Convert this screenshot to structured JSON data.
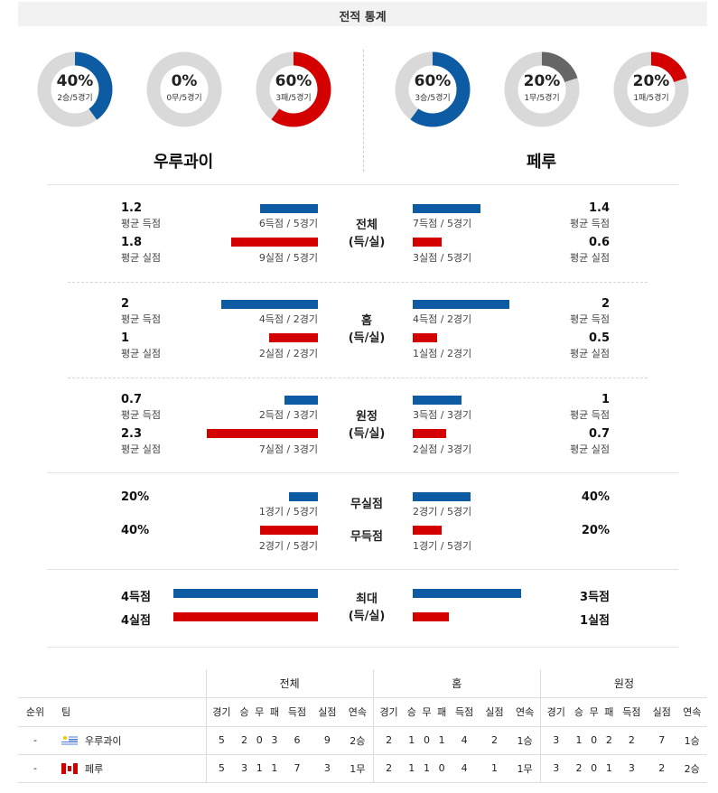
{
  "header": {
    "title": "전적 통계"
  },
  "teams": {
    "left": {
      "name": "우루과이"
    },
    "right": {
      "name": "페루"
    }
  },
  "colors": {
    "blue": "#0d5ba2",
    "red": "#d40000",
    "gray": "#666666",
    "track": "#d9d9d9"
  },
  "donuts": [
    {
      "pct": "40%",
      "sub": "2승/5경기",
      "fraction": 0.4,
      "color": "#0d5ba2"
    },
    {
      "pct": "0%",
      "sub": "0무/5경기",
      "fraction": 0.0,
      "color": "#666666"
    },
    {
      "pct": "60%",
      "sub": "3패/5경기",
      "fraction": 0.6,
      "color": "#d40000"
    },
    {
      "pct": "60%",
      "sub": "3승/5경기",
      "fraction": 0.6,
      "color": "#0d5ba2"
    },
    {
      "pct": "20%",
      "sub": "1무/5경기",
      "fraction": 0.2,
      "color": "#666666"
    },
    {
      "pct": "20%",
      "sub": "1패/5경기",
      "fraction": 0.2,
      "color": "#d40000"
    }
  ],
  "sections": {
    "total": {
      "title_line1": "전체",
      "title_line2": "(득/실)",
      "left": {
        "scored_avg": "1.2",
        "scored_label": "평균 득점",
        "scored_bar": "6득점 / 5경기",
        "scored_value": 1.2,
        "conceded_avg": "1.8",
        "conceded_label": "평균 실점",
        "conceded_bar": "9실점 / 5경기",
        "conceded_value": 1.8
      },
      "right": {
        "scored_avg": "1.4",
        "scored_label": "평균 득점",
        "scored_bar": "7득점 / 5경기",
        "scored_value": 1.4,
        "conceded_avg": "0.6",
        "conceded_label": "평균 실점",
        "conceded_bar": "3실점 / 5경기",
        "conceded_value": 0.6
      }
    },
    "home": {
      "title_line1": "홈",
      "title_line2": "(득/실)",
      "left": {
        "scored_avg": "2",
        "scored_label": "평균 득점",
        "scored_bar": "4득점 / 2경기",
        "scored_value": 2,
        "conceded_avg": "1",
        "conceded_label": "평균 실점",
        "conceded_bar": "2실점 / 2경기",
        "conceded_value": 1
      },
      "right": {
        "scored_avg": "2",
        "scored_label": "평균 득점",
        "scored_bar": "4득점 / 2경기",
        "scored_value": 2,
        "conceded_avg": "0.5",
        "conceded_label": "평균 실점",
        "conceded_bar": "1실점 / 2경기",
        "conceded_value": 0.5
      }
    },
    "away": {
      "title_line1": "원정",
      "title_line2": "(득/실)",
      "left": {
        "scored_avg": "0.7",
        "scored_label": "평균 득점",
        "scored_bar": "2득점 / 3경기",
        "scored_value": 0.7,
        "conceded_avg": "2.3",
        "conceded_label": "평균 실점",
        "conceded_bar": "7실점 / 3경기",
        "conceded_value": 2.3
      },
      "right": {
        "scored_avg": "1",
        "scored_label": "평균 득점",
        "scored_bar": "3득점 / 3경기",
        "scored_value": 1,
        "conceded_avg": "0.7",
        "conceded_label": "평균 실점",
        "conceded_bar": "2실점 / 3경기",
        "conceded_value": 0.7
      }
    },
    "clean": {
      "clean_label": "무실점",
      "noscore_label": "무득점",
      "left": {
        "clean_pct": "20%",
        "clean_bar": "1경기 / 5경기",
        "clean_value": 0.2,
        "noscore_pct": "40%",
        "noscore_bar": "2경기 / 5경기",
        "noscore_value": 0.4
      },
      "right": {
        "clean_pct": "40%",
        "clean_bar": "2경기 / 5경기",
        "clean_value": 0.4,
        "noscore_pct": "20%",
        "noscore_bar": "1경기 / 5경기",
        "noscore_value": 0.2
      }
    },
    "max": {
      "title_line1": "최대",
      "title_line2": "(득/실)",
      "left": {
        "scored": "4득점",
        "scored_value": 4,
        "conceded": "4실점",
        "conceded_value": 4
      },
      "right": {
        "scored": "3득점",
        "scored_value": 3,
        "conceded": "1실점",
        "conceded_value": 1
      }
    }
  },
  "standings": {
    "groups": {
      "total": "전체",
      "home": "홈",
      "away": "원정"
    },
    "columns": {
      "rank": "순위",
      "team": "팀",
      "stats": [
        "경기",
        "승",
        "무",
        "패",
        "득점",
        "실점",
        "연속"
      ]
    },
    "rows": [
      {
        "rank": "-",
        "team": "우루과이",
        "flag": "uruguay-flag-icon",
        "total": [
          "5",
          "2",
          "0",
          "3",
          "6",
          "9",
          "2승"
        ],
        "home": [
          "2",
          "1",
          "0",
          "1",
          "4",
          "2",
          "1승"
        ],
        "away": [
          "3",
          "1",
          "0",
          "2",
          "2",
          "7",
          "1승"
        ]
      },
      {
        "rank": "-",
        "team": "페루",
        "flag": "peru-flag-icon",
        "total": [
          "5",
          "3",
          "1",
          "1",
          "7",
          "3",
          "1무"
        ],
        "home": [
          "2",
          "1",
          "1",
          "0",
          "4",
          "1",
          "1무"
        ],
        "away": [
          "3",
          "2",
          "0",
          "1",
          "3",
          "2",
          "2승"
        ]
      }
    ]
  }
}
